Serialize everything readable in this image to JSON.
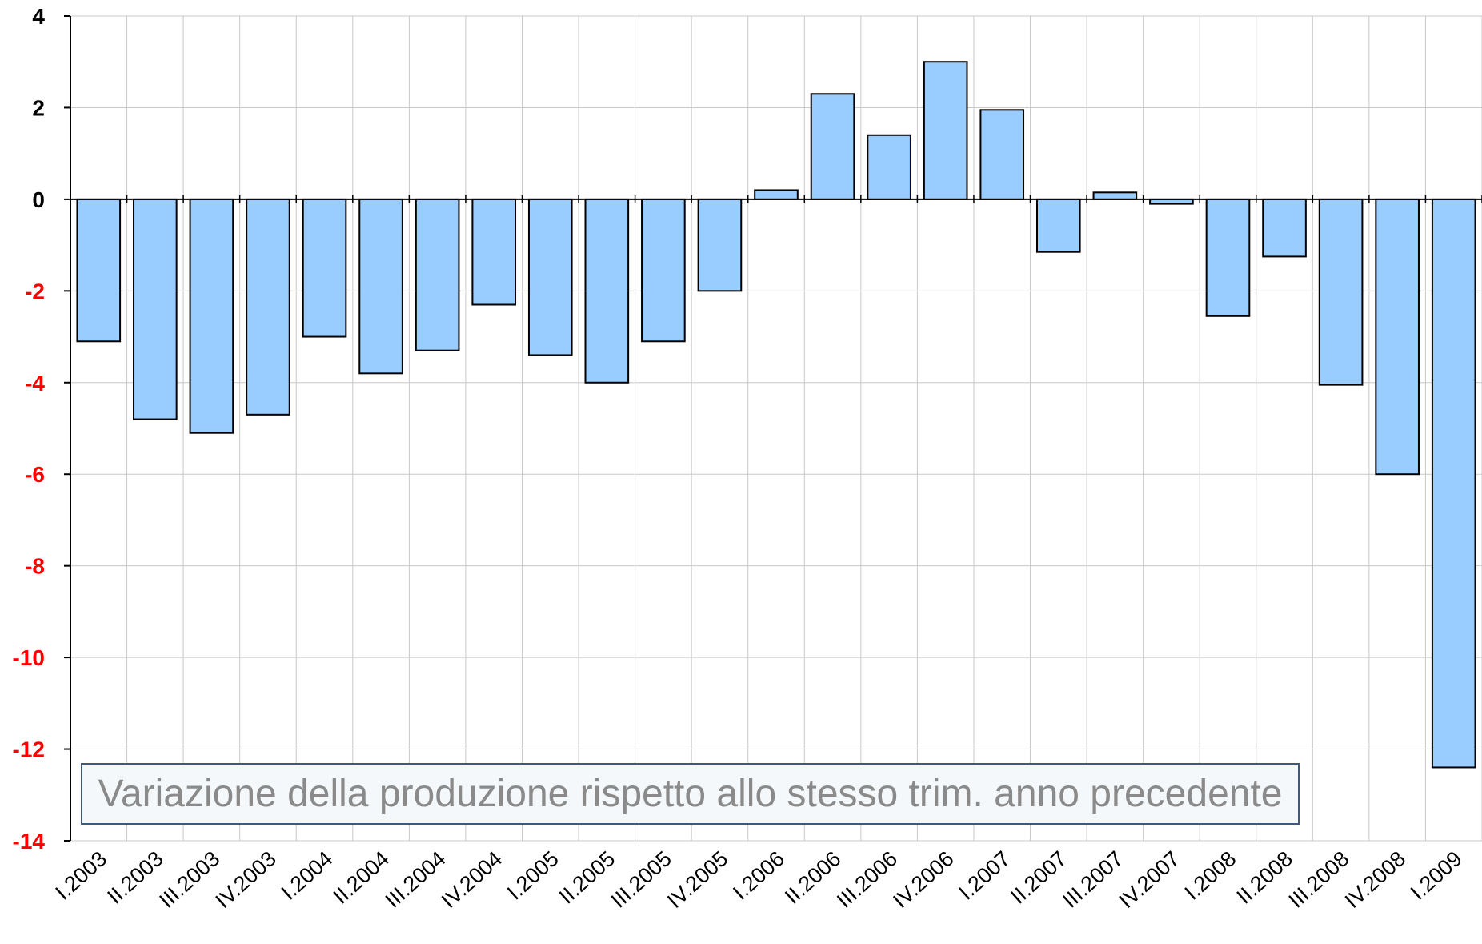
{
  "chart_data": {
    "type": "bar",
    "categories": [
      "I.2003",
      "II.2003",
      "III.2003",
      "IV.2003",
      "I.2004",
      "II.2004",
      "III.2004",
      "IV.2004",
      "I.2005",
      "II.2005",
      "III.2005",
      "IV.2005",
      "I.2006",
      "II.2006",
      "III.2006",
      "IV.2006",
      "I.2007",
      "II.2007",
      "III.2007",
      "IV.2007",
      "I.2008",
      "II.2008",
      "III.2008",
      "IV.2008",
      "I.2009"
    ],
    "values": [
      -3.1,
      -4.8,
      -5.1,
      -4.7,
      -3.0,
      -3.8,
      -3.3,
      -2.3,
      -3.4,
      -4.0,
      -3.1,
      -2.0,
      0.2,
      2.3,
      1.4,
      3.0,
      1.95,
      -1.15,
      0.15,
      -0.1,
      -2.55,
      -1.25,
      -4.05,
      -6.0,
      -12.4
    ],
    "ylim": [
      -14,
      4
    ],
    "yticks": [
      4,
      2,
      0,
      -2,
      -4,
      -6,
      -8,
      -10,
      -12,
      -14
    ],
    "grid": true,
    "annotation": "Variazione della produzione rispetto allo stesso trim. anno precedente",
    "colors": {
      "bar": "#99ccff",
      "bar_border": "#000000",
      "positive_tick": "#000000",
      "negative_tick": "#ff0000",
      "grid": "#c8c8c8"
    }
  }
}
